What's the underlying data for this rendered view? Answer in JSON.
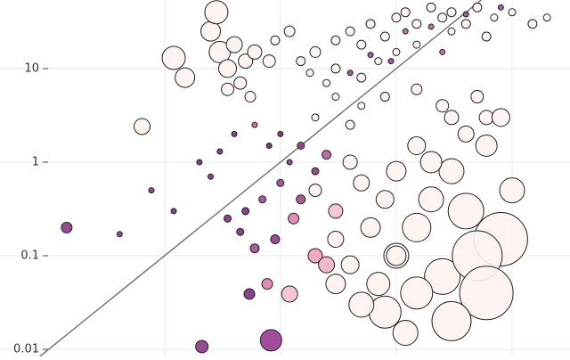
{
  "chart_data": {
    "type": "bubble",
    "x": [
      1.5,
      2,
      3,
      4,
      5,
      6,
      8,
      10,
      12,
      15,
      20,
      25,
      30,
      40,
      50,
      70,
      100,
      150,
      3,
      5,
      7,
      10,
      2.5,
      1.2,
      0.9,
      1.8,
      15,
      30,
      60,
      200,
      6,
      9,
      12,
      20,
      40,
      4,
      25,
      80,
      0.12,
      0.15,
      0.25,
      0.3,
      0.28,
      0.35,
      0.4,
      0.5,
      0.6,
      0.8,
      0.45,
      0.55,
      0.35,
      3,
      5,
      2,
      4,
      8,
      15,
      25,
      30,
      50,
      60,
      40,
      0.8,
      1,
      1.2,
      1.5,
      2,
      1,
      0.7,
      1.5,
      2.5,
      0.5,
      0.35,
      0.45,
      0.25,
      0.2,
      0.3,
      0.6,
      0.4,
      0.9,
      1.3,
      0.6,
      40,
      80,
      25,
      50,
      15,
      60,
      100,
      60,
      80,
      30,
      20,
      30,
      10,
      15,
      20,
      15,
      8,
      12,
      5,
      7,
      10,
      6,
      8,
      10,
      4,
      3,
      4,
      5,
      3,
      2,
      2,
      3,
      2.5,
      0.0143,
      0.041,
      0.077,
      0.064,
      0.12,
      0.21,
      0.83,
      0.54,
      0.77,
      1.2
    ],
    "y": [
      12,
      15,
      20,
      25,
      18,
      30,
      22,
      35,
      40,
      30,
      45,
      35,
      40,
      30,
      45,
      35,
      40,
      30,
      10,
      8,
      12,
      15,
      7,
      25,
      20,
      9,
      18,
      25,
      22,
      35,
      14,
      12,
      25,
      28,
      38,
      9,
      15,
      45,
      13,
      8,
      25,
      15,
      40,
      10,
      18,
      12,
      15,
      12,
      7,
      5,
      6,
      5,
      4,
      3,
      2.5,
      5,
      6,
      4,
      3,
      5,
      3,
      2,
      1.5,
      2,
      1,
      1.5,
      0.8,
      0.6,
      0.4,
      0.4,
      1.2,
      0.3,
      0.25,
      0.18,
      0.7,
      1,
      1.3,
      2.5,
      2,
      0.15,
      0.25,
      0.12,
      0.3,
      0.15,
      0.06,
      0.1,
      0.04,
      0.04,
      0.5,
      1.5,
      3,
      0.02,
      0.4,
      0.8,
      0.8,
      1.5,
      1,
      0.2,
      0.025,
      0.015,
      0.03,
      0.05,
      0.1,
      0.2,
      0.4,
      0.1,
      0.08,
      0.3,
      1,
      0.6,
      0.05,
      0.5,
      0.1,
      0.15,
      0.08,
      0.2,
      0.17,
      0.5,
      2.4,
      0.3,
      0.0107,
      0.0125,
      0.039,
      0.05,
      0.039
    ],
    "size": [
      5,
      6,
      5,
      5,
      5,
      5,
      5,
      5,
      5,
      5,
      5,
      5,
      5,
      5,
      5,
      4,
      4,
      5,
      5,
      5,
      4,
      4,
      4,
      6,
      5,
      4,
      4,
      4,
      5,
      4,
      3,
      3,
      3,
      3,
      3,
      3,
      3,
      3,
      13,
      11,
      11,
      12,
      13,
      10,
      9,
      8,
      8,
      7,
      7,
      6,
      7,
      4,
      4,
      4,
      5,
      5,
      6,
      7,
      8,
      7,
      8,
      9,
      3,
      3,
      3,
      4,
      4,
      4,
      4,
      5,
      5,
      4,
      4,
      4,
      3,
      3,
      3,
      3,
      3,
      5,
      6,
      5,
      20,
      30,
      20,
      28,
      18,
      30,
      14,
      12,
      10,
      22,
      14,
      14,
      11,
      10,
      12,
      16,
      18,
      14,
      14,
      13,
      14,
      11,
      10,
      11,
      10,
      8,
      8,
      9,
      11,
      7,
      8,
      9,
      9,
      6,
      3,
      3,
      9,
      3,
      7,
      12,
      6,
      6,
      9
    ],
    "colors": [
      "#fdf3ef",
      "#fdf3ef",
      "#fdf3ef",
      "#fdf3ef",
      "#fdf3ef",
      "#fdf3ef",
      "#fdf3ef",
      "#fdf3ef",
      "#fdf3ef",
      "#fdf3ef",
      "#fdf3ef",
      "#fdf3ef",
      "#fdf3ef",
      "#fdf3ef",
      "#fdf3ef",
      "#fdf3ef",
      "#fdf3ef",
      "#fdf3ef",
      "#fdf3ef",
      "#fdf3ef",
      "#fdf3ef",
      "#fdf3ef",
      "#fdf3ef",
      "#fdf3ef",
      "#fdf3ef",
      "#fdf3ef",
      "#fdf3ef",
      "#fdf3ef",
      "#fdf3ef",
      "#fdf3ef",
      "#9a4a92",
      "#9a4a92",
      "#c060a0",
      "#c060a0",
      "#9a4a92",
      "#9a4a92",
      "#c060a0",
      "#9a4a92",
      "#fdf3ef",
      "#fdf3ef",
      "#fdf3ef",
      "#fdf3ef",
      "#fdf3ef",
      "#fdf3ef",
      "#fdf3ef",
      "#fdf3ef",
      "#fdf3ef",
      "#fdf3ef",
      "#fdf3ef",
      "#fdf3ef",
      "#fdf3ef",
      "#fdf3ef",
      "#fdf3ef",
      "#fdf3ef",
      "#fdf3ef",
      "#fdf3ef",
      "#fdf3ef",
      "#fdf3ef",
      "#fdf3ef",
      "#fdf3ef",
      "#fdf3ef",
      "#fdf3ef",
      "#6e2a70",
      "#6e2a70",
      "#8a3a85",
      "#8a3a85",
      "#8a3a85",
      "#a04890",
      "#a04890",
      "#a04890",
      "#b85a9e",
      "#7a2f7a",
      "#7a2f7a",
      "#7a2f7a",
      "#7a2f7a",
      "#7a2f7a",
      "#7a2f7a",
      "#d060a8",
      "#7a2f7a",
      "#8a3a85",
      "#e080b0",
      "#9a4a92",
      "#fdf3ef",
      "#fdf3ef",
      "#fdf3ef",
      "#fdf3ef",
      "#fdf3ef",
      "#fdf3ef",
      "#fdf3ef",
      "#fdf3ef",
      "#fdf3ef",
      "#fdf3ef",
      "#fdf3ef",
      "#fdf3ef",
      "#fdf3ef",
      "#fdf3ef",
      "#fdf3ef",
      "#fdf3ef",
      "#fdf3ef",
      "#fdf3ef",
      "#fdf3ef",
      "#fdf3ef",
      "#fdf3ef",
      "#fdf3ef",
      "#fdf3ef",
      "#fdf3ef",
      "#fdf3ef",
      "#f6c0d0",
      "#fdf3ef",
      "#fdf3ef",
      "#fdf3ef",
      "#fdf3ef",
      "#f0a0c0",
      "#fdf3ef",
      "#f0b0c8",
      "#8a3a85",
      "#8a3a85",
      "#8a3a85",
      "#fdf3ef",
      "#7a2f7a",
      "#8a3a85",
      "#9a3a95",
      "#7a2f7a",
      "#e080b0",
      "#f6c0d0"
    ],
    "xlim": [
      0.0038,
      316
    ],
    "ylim": [
      0.0084,
      54
    ],
    "xticks": [
      0.1,
      1,
      10,
      100
    ],
    "yticks": [
      0.01,
      0.1,
      1,
      10
    ],
    "log_x": true,
    "log_y": true,
    "grid": true,
    "diagonal": true
  }
}
